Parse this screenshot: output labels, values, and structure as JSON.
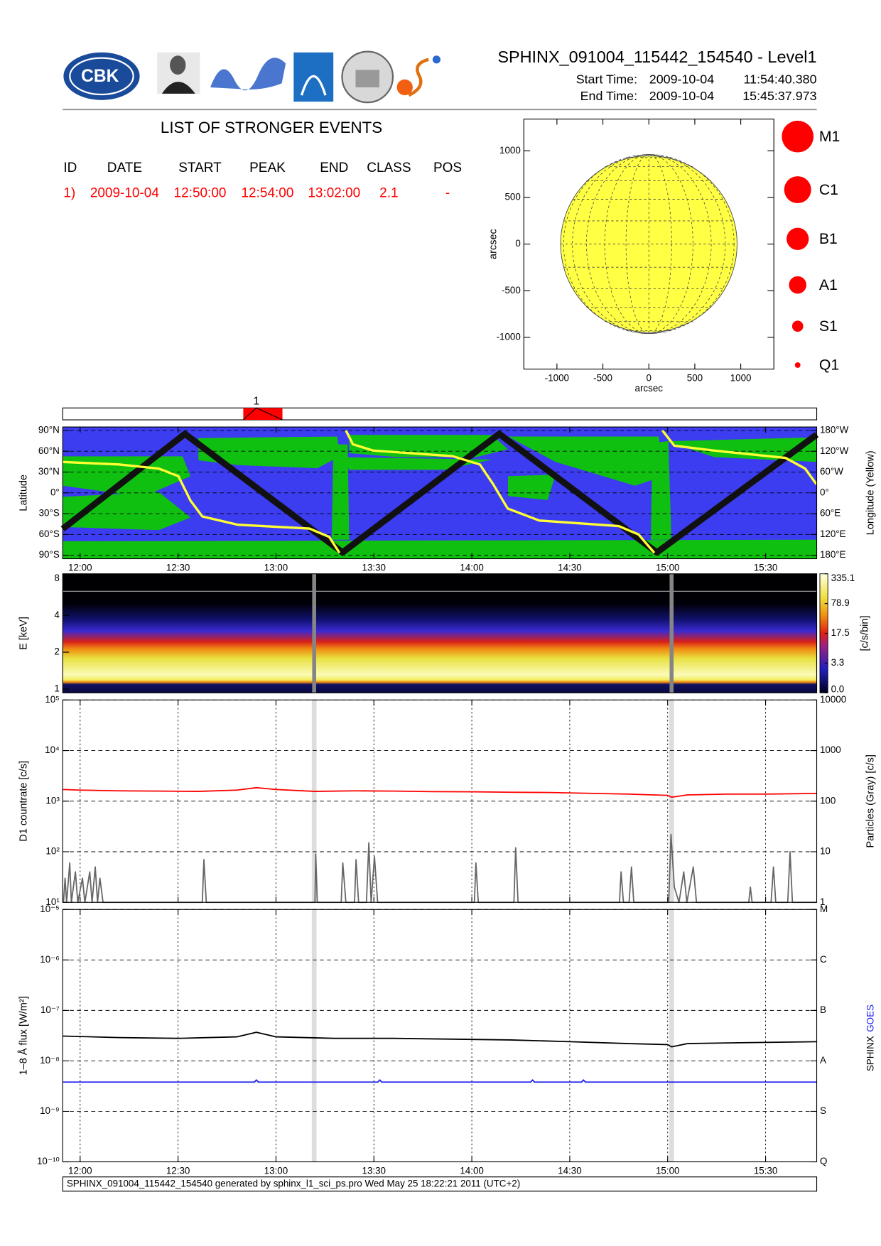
{
  "header": {
    "title": "SPHINX_091004_115442_154540 - Level1",
    "start_label": "Start Time:",
    "start_date": "2009-10-04",
    "start_time": "11:54:40.380",
    "end_label": "End Time:",
    "end_date": "2009-10-04",
    "end_time": "15:45:37.973"
  },
  "logo_text": "CBK",
  "events": {
    "title": "LIST OF STRONGER EVENTS",
    "columns": [
      "ID",
      "DATE",
      "START",
      "PEAK",
      "END",
      "CLASS",
      "POS"
    ],
    "rows": [
      [
        "1)",
        "2009-10-04",
        "12:50:00",
        "12:54:00",
        "13:02:00",
        "2.1",
        "-"
      ]
    ]
  },
  "chart_data": [
    {
      "type": "disk",
      "xlabel": "arcsec",
      "ylabel": "arcsec",
      "xlim": [
        -1360,
        1360
      ],
      "ylim": [
        -1340,
        1340
      ],
      "xticks": [
        -1000,
        -500,
        0,
        500,
        1000
      ],
      "yticks": [
        -1000,
        -500,
        0,
        500,
        1000
      ],
      "radius": 960,
      "color": "#ffff44",
      "legend": [
        "M1",
        "C1",
        "B1",
        "A1",
        "S1",
        "Q1"
      ],
      "legend_color": "#ff0000"
    },
    {
      "type": "timeline",
      "xlim": [
        11.911,
        15.761
      ],
      "events": [
        {
          "label": "1",
          "start": 12.833,
          "peak": 12.9,
          "end": 13.033
        }
      ],
      "color": "#ff0000"
    },
    {
      "type": "orbit",
      "ylabel": "Latitude",
      "y2label": "Longitude (Yellow)",
      "xlim": [
        11.911,
        15.761
      ],
      "xticks": [
        {
          "value": 12,
          "label": "12:00"
        },
        {
          "value": 12.5,
          "label": "12:30"
        },
        {
          "value": 13,
          "label": "13:00"
        },
        {
          "value": 13.5,
          "label": "13:30"
        },
        {
          "value": 14,
          "label": "14:00"
        },
        {
          "value": 14.5,
          "label": "14:30"
        },
        {
          "value": 15,
          "label": "15:00"
        },
        {
          "value": 15.5,
          "label": "15:30"
        }
      ],
      "ylim": [
        -95,
        95
      ],
      "yticks": [
        {
          "value": 90,
          "label": "90°N"
        },
        {
          "value": 60,
          "label": "60°N"
        },
        {
          "value": 30,
          "label": "30°N"
        },
        {
          "value": 0,
          "label": "0°"
        },
        {
          "value": -30,
          "label": "30°S"
        },
        {
          "value": -60,
          "label": "60°S"
        },
        {
          "value": -90,
          "label": "90°S"
        }
      ],
      "y2lim": [
        -190,
        190
      ],
      "y2ticks": [
        {
          "value": 180,
          "label": "180°W"
        },
        {
          "value": 120,
          "label": "120°W"
        },
        {
          "value": 60,
          "label": "60°W"
        },
        {
          "value": 0,
          "label": "0°"
        },
        {
          "value": -60,
          "label": "60°E"
        },
        {
          "value": -120,
          "label": "120°E"
        },
        {
          "value": -180,
          "label": "180°E"
        }
      ],
      "grid": "y",
      "background": "#3c3cf0",
      "region_color": "#10c010",
      "series": [
        {
          "color": "#111111",
          "x": [
            11.911,
            12.535,
            13.34,
            14.14,
            14.945,
            15.761
          ],
          "values": [
            -52,
            85,
            -86,
            85,
            -86,
            84
          ]
        },
        {
          "color": "#ffff33",
          "axis": "y2",
          "x": [
            11.911,
            12.198,
            12.401,
            12.502,
            12.563,
            12.624,
            12.806,
            13.171,
            13.272,
            13.324,
            13.34,
            13.357,
            13.393,
            13.495,
            13.9,
            14.041,
            14.11,
            14.183,
            14.345,
            14.75,
            14.851,
            14.932,
            14.95,
            14.973,
            15.034,
            15.236,
            15.601,
            15.702,
            15.761
          ],
          "values": [
            89,
            82,
            70,
            48,
            -22,
            -68,
            -92,
            -103,
            -127,
            -173,
            null,
            180,
            140,
            122,
            106,
            82,
            24,
            -45,
            -80,
            -96,
            -120,
            -173,
            null,
            180,
            136,
            122,
            101,
            70,
            24
          ]
        }
      ]
    },
    {
      "type": "spectrogram",
      "ylabel": "E [keV]",
      "xlim": [
        11.911,
        15.761
      ],
      "ylim": [
        0.93,
        8.75
      ],
      "log_y": true,
      "yticks": [
        1,
        2,
        4,
        8
      ],
      "colorbar_label": "[c/s/bin]",
      "colorbar_ticks": [
        {
          "value": 0,
          "label": "0.0"
        },
        3.3,
        17.5,
        78.9,
        335.1
      ],
      "gaps": [
        13.195,
        15.02
      ],
      "gap_color": "#858585"
    },
    {
      "type": "line",
      "ylabel": "D1 countrate [c/s]",
      "y2label": "Particles (Gray) [c/s]",
      "xlim": [
        11.911,
        15.761
      ],
      "xticks": [
        12,
        12.5,
        13,
        13.5,
        14,
        14.5,
        15,
        15.5
      ],
      "log_y": true,
      "ylim": [
        10,
        100000
      ],
      "yticks": [
        {
          "value": 10,
          "label": "10¹"
        },
        {
          "value": 100,
          "label": "10²"
        },
        {
          "value": 1000,
          "label": "10³"
        },
        {
          "value": 10000,
          "label": "10⁴"
        },
        {
          "value": 100000,
          "label": "10⁵"
        }
      ],
      "y2lim": [
        1,
        10000
      ],
      "y2ticks": [
        1,
        10,
        100,
        1000,
        10000
      ],
      "grid": true,
      "gaps": [
        13.195,
        15.02
      ],
      "gap_color": "#dddddd",
      "series": [
        {
          "color": "#666666",
          "axis": "y2",
          "x": [
            11.915,
            11.923,
            11.931,
            11.947,
            11.955,
            11.976,
            11.988,
            12.012,
            12.024,
            12.049,
            12.061,
            12.077,
            12.089,
            12.101,
            12.117,
            12.624,
            12.632,
            12.644,
            13.199,
            13.203,
            13.211,
            13.333,
            13.341,
            13.357,
            13.401,
            13.409,
            13.422,
            13.462,
            13.474,
            13.486,
            13.503,
            13.519,
            14.013,
            14.021,
            14.033,
            14.215,
            14.224,
            14.236,
            14.754,
            14.762,
            14.774,
            14.803,
            14.815,
            14.827,
            15.005,
            15.017,
            15.034,
            15.058,
            15.082,
            15.098,
            15.131,
            15.147,
            15.414,
            15.422,
            15.431,
            15.528,
            15.54,
            15.552,
            15.613,
            15.625,
            15.637,
            15.759
          ],
          "values": [
            1,
            3,
            1,
            6,
            1,
            4,
            1,
            3,
            1,
            4,
            1,
            5,
            1,
            3,
            1,
            1,
            7,
            1,
            1,
            9,
            1,
            1,
            6,
            1,
            1,
            7,
            1,
            1,
            15,
            1,
            8,
            1,
            1,
            6,
            1,
            1,
            12,
            1,
            1,
            4,
            1,
            1,
            5,
            1,
            1,
            22,
            2,
            1,
            4,
            1,
            5,
            1,
            1,
            2,
            1,
            1,
            5,
            1,
            1,
            10,
            1,
            1
          ]
        },
        {
          "color": "#ff0000",
          "x": [
            11.911,
            12.0,
            12.2,
            12.4,
            12.6,
            12.8,
            12.9,
            13.0,
            13.2,
            13.4,
            13.6,
            13.8,
            14.0,
            14.2,
            14.4,
            14.6,
            14.8,
            15.0,
            15.02,
            15.1,
            15.3,
            15.5,
            15.761
          ],
          "values": [
            1700,
            1650,
            1600,
            1580,
            1560,
            1650,
            1850,
            1700,
            1560,
            1600,
            1580,
            1540,
            1530,
            1500,
            1480,
            1430,
            1380,
            1300,
            1200,
            1330,
            1380,
            1380,
            1420
          ]
        }
      ]
    },
    {
      "type": "line",
      "ylabel": "1–8 Å flux [W/m²]",
      "xlim": [
        11.911,
        15.761
      ],
      "xticks": [
        {
          "value": 12,
          "label": "12:00"
        },
        {
          "value": 12.5,
          "label": "12:30"
        },
        {
          "value": 13,
          "label": "13:00"
        },
        {
          "value": 13.5,
          "label": "13:30"
        },
        {
          "value": 14,
          "label": "14:00"
        },
        {
          "value": 14.5,
          "label": "14:30"
        },
        {
          "value": 15,
          "label": "15:00"
        },
        {
          "value": 15.5,
          "label": "15:30"
        }
      ],
      "log_y": true,
      "ylim": [
        1e-10,
        1e-05
      ],
      "yticks": [
        {
          "value": 1e-10,
          "label": "10⁻¹⁰"
        },
        {
          "value": 1e-09,
          "label": "10⁻⁹"
        },
        {
          "value": 1e-08,
          "label": "10⁻⁸"
        },
        {
          "value": 1e-07,
          "label": "10⁻⁷"
        },
        {
          "value": 1e-06,
          "label": "10⁻⁶"
        },
        {
          "value": 1e-05,
          "label": "10⁻⁵"
        }
      ],
      "y2lim": [
        1e-10,
        1e-05
      ],
      "y2ticks": [
        {
          "value": 1e-05,
          "label": "M"
        },
        {
          "value": 1e-06,
          "label": "C"
        },
        {
          "value": 1e-07,
          "label": "B"
        },
        {
          "value": 1e-08,
          "label": "A"
        },
        {
          "value": 1e-09,
          "label": "S"
        },
        {
          "value": 1e-10,
          "label": "Q"
        }
      ],
      "grid": true,
      "gaps": [
        13.195,
        15.02
      ],
      "gap_color": "#dddddd",
      "series": [
        {
          "name": "SPHINX",
          "color": "#000000",
          "x": [
            11.911,
            12.2,
            12.5,
            12.8,
            12.9,
            13.0,
            13.3,
            13.6,
            13.9,
            14.2,
            14.5,
            14.8,
            15.0,
            15.02,
            15.1,
            15.4,
            15.761
          ],
          "values": [
            3.1e-08,
            2.9e-08,
            2.8e-08,
            3e-08,
            3.7e-08,
            3e-08,
            2.8e-08,
            2.8e-08,
            2.7e-08,
            2.6e-08,
            2.4e-08,
            2.2e-08,
            2.1e-08,
            1.9e-08,
            2.2e-08,
            2.3e-08,
            2.4e-08
          ]
        },
        {
          "name": "GOES",
          "color": "#2020ee",
          "x": [
            11.911,
            12.89,
            12.9,
            12.91,
            13.52,
            13.53,
            13.54,
            14.3,
            14.31,
            14.32,
            14.56,
            14.57,
            14.58,
            15.761
          ],
          "values": [
            3.8e-09,
            3.8e-09,
            4.2e-09,
            3.8e-09,
            3.8e-09,
            4.2e-09,
            3.8e-09,
            3.8e-09,
            4.2e-09,
            3.8e-09,
            3.8e-09,
            4.2e-09,
            3.8e-09,
            3.8e-09
          ]
        }
      ]
    }
  ],
  "footer": "SPHINX_091004_115442_154540 generated by sphinx_l1_sci_ps.pro Wed May 25 18:22:21 2011 (UTC+2)"
}
